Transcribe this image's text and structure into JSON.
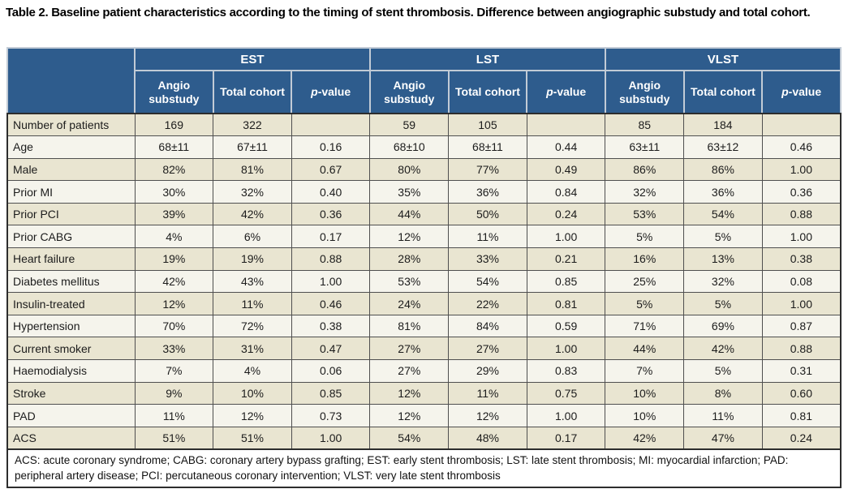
{
  "title": "Table 2. Baseline patient characteristics according to the timing of stent thrombosis. Difference between angiographic substudy and total cohort.",
  "colors": {
    "header_bg": "#2e5c8d",
    "header_text": "#ffffff",
    "row_odd_bg": "#e9e5d1",
    "row_even_bg": "#f5f4ec",
    "cell_border": "#4f4f4f",
    "outer_border": "#2d2d2d"
  },
  "header": {
    "groups": [
      "EST",
      "LST",
      "VLST"
    ],
    "subcolumns": [
      "Angio substudy",
      "Total cohort"
    ],
    "p_label": {
      "italic": "p",
      "rest": "-value"
    }
  },
  "table": {
    "rows": [
      {
        "label": "Number of patients",
        "values": [
          "169",
          "322",
          "",
          "59",
          "105",
          "",
          "85",
          "184",
          ""
        ]
      },
      {
        "label": "Age",
        "values": [
          "68±11",
          "67±11",
          "0.16",
          "68±10",
          "68±11",
          "0.44",
          "63±11",
          "63±12",
          "0.46"
        ]
      },
      {
        "label": "Male",
        "values": [
          "82%",
          "81%",
          "0.67",
          "80%",
          "77%",
          "0.49",
          "86%",
          "86%",
          "1.00"
        ]
      },
      {
        "label": "Prior MI",
        "values": [
          "30%",
          "32%",
          "0.40",
          "35%",
          "36%",
          "0.84",
          "32%",
          "36%",
          "0.36"
        ]
      },
      {
        "label": "Prior PCI",
        "values": [
          "39%",
          "42%",
          "0.36",
          "44%",
          "50%",
          "0.24",
          "53%",
          "54%",
          "0.88"
        ]
      },
      {
        "label": "Prior CABG",
        "values": [
          "4%",
          "6%",
          "0.17",
          "12%",
          "11%",
          "1.00",
          "5%",
          "5%",
          "1.00"
        ]
      },
      {
        "label": "Heart failure",
        "values": [
          "19%",
          "19%",
          "0.88",
          "28%",
          "33%",
          "0.21",
          "16%",
          "13%",
          "0.38"
        ]
      },
      {
        "label": "Diabetes mellitus",
        "values": [
          "42%",
          "43%",
          "1.00",
          "53%",
          "54%",
          "0.85",
          "25%",
          "32%",
          "0.08"
        ]
      },
      {
        "label": "Insulin-treated",
        "values": [
          "12%",
          "11%",
          "0.46",
          "24%",
          "22%",
          "0.81",
          "5%",
          "5%",
          "1.00"
        ]
      },
      {
        "label": "Hypertension",
        "values": [
          "70%",
          "72%",
          "0.38",
          "81%",
          "84%",
          "0.59",
          "71%",
          "69%",
          "0.87"
        ]
      },
      {
        "label": "Current smoker",
        "values": [
          "33%",
          "31%",
          "0.47",
          "27%",
          "27%",
          "1.00",
          "44%",
          "42%",
          "0.88"
        ]
      },
      {
        "label": "Haemodialysis",
        "values": [
          "7%",
          "4%",
          "0.06",
          "27%",
          "29%",
          "0.83",
          "7%",
          "5%",
          "0.31"
        ]
      },
      {
        "label": "Stroke",
        "values": [
          "9%",
          "10%",
          "0.85",
          "12%",
          "11%",
          "0.75",
          "10%",
          "8%",
          "0.60"
        ]
      },
      {
        "label": "PAD",
        "values": [
          "11%",
          "12%",
          "0.73",
          "12%",
          "12%",
          "1.00",
          "10%",
          "11%",
          "0.81"
        ]
      },
      {
        "label": "ACS",
        "values": [
          "51%",
          "51%",
          "1.00",
          "54%",
          "48%",
          "0.17",
          "42%",
          "47%",
          "0.24"
        ]
      }
    ]
  },
  "footnote": "ACS: acute coronary syndrome; CABG: coronary artery bypass grafting; EST: early stent thrombosis; LST: late stent thrombosis; MI: myocardial infarction; PAD: peripheral artery disease; PCI: percutaneous coronary intervention; VLST: very late stent thrombosis"
}
